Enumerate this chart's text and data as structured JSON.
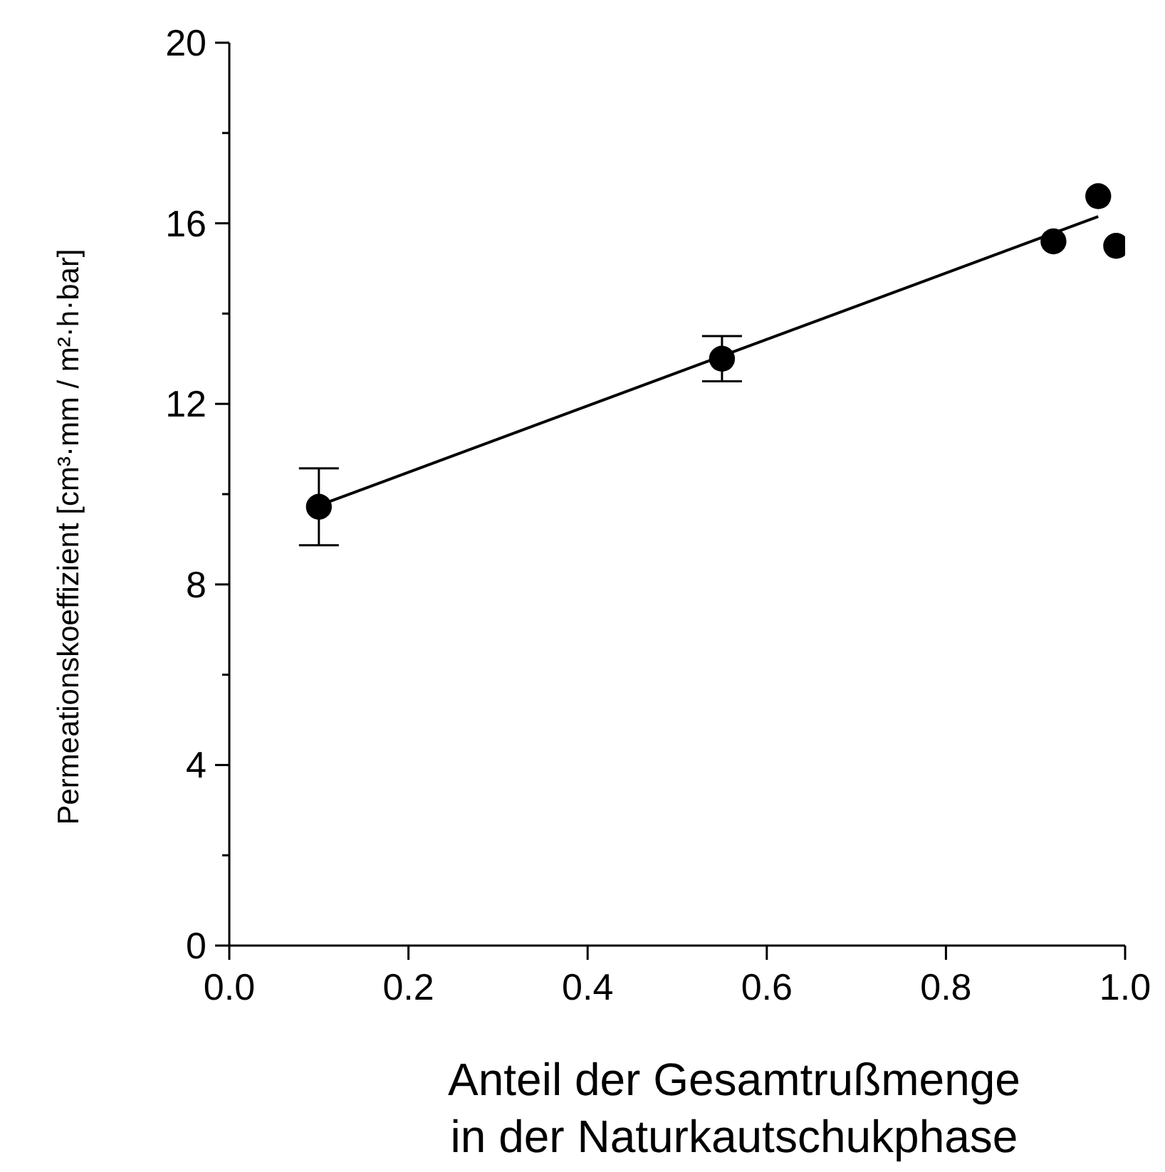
{
  "chart_data": {
    "type": "scatter",
    "xlabel": "Anteil der Gesamtrußmenge in der Naturkautschukphase",
    "ylabel": "Permeationskoeffizient [cm³·mm / m²·h·bar]",
    "xlim": [
      0,
      1
    ],
    "xticks": [
      {
        "value": 0,
        "label": "0.0"
      },
      {
        "value": 0.2,
        "label": "0.2"
      },
      {
        "value": 0.4,
        "label": "0.4"
      },
      {
        "value": 0.6,
        "label": "0.6"
      },
      {
        "value": 0.8,
        "label": "0.8"
      },
      {
        "value": 1,
        "label": "1.0"
      }
    ],
    "ylim": [
      0,
      20
    ],
    "yticks": [
      0,
      {
        "value": 2,
        "label": null
      },
      4,
      {
        "value": 6,
        "label": null
      },
      8,
      {
        "value": 10,
        "label": null
      },
      12,
      {
        "value": 14,
        "label": null
      },
      16,
      {
        "value": 18,
        "label": null
      },
      20
    ],
    "grid": false,
    "legend": false,
    "series": [
      {
        "marker": "circle",
        "color": "#000000",
        "x": [
          0.1,
          0.55,
          0.92,
          0.97,
          0.99
        ],
        "values": [
          9.72,
          13.0,
          15.6,
          16.6,
          15.5
        ],
        "errors": [
          0.85,
          0.5,
          null,
          null,
          null
        ]
      },
      {
        "type": "line",
        "color": "#000000",
        "x": [
          0.1,
          0.97
        ],
        "values": [
          9.75,
          16.15
        ]
      }
    ]
  }
}
